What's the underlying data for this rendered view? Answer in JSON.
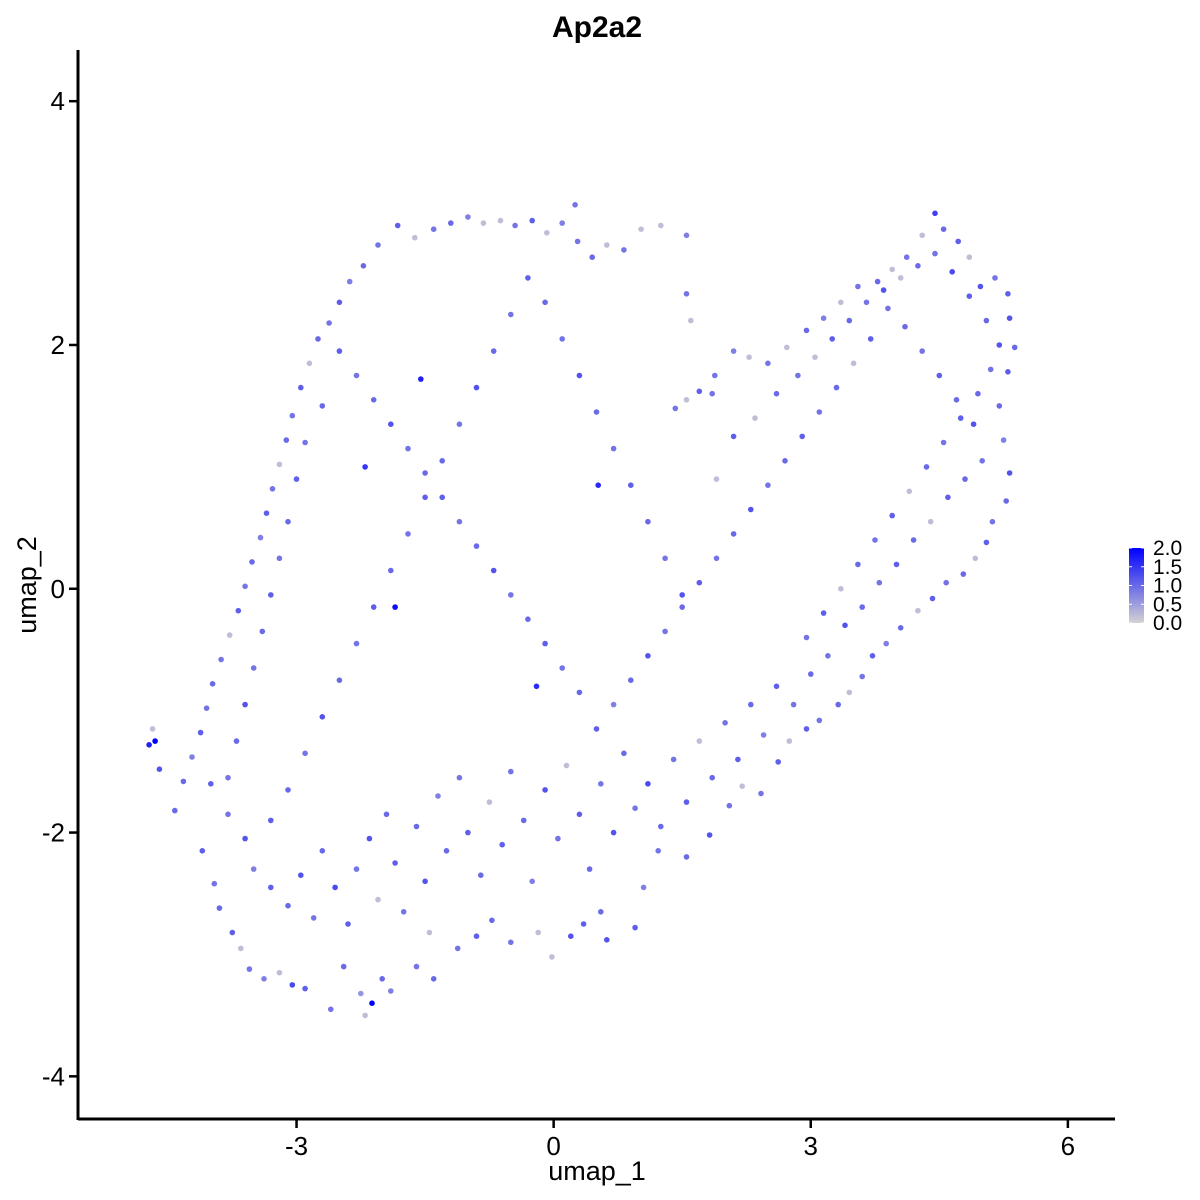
{
  "chart_data": {
    "type": "scatter",
    "title": "Ap2a2",
    "xlabel": "umap_1",
    "ylabel": "umap_2",
    "xlim": [
      -5.55,
      6.55
    ],
    "ylim": [
      -4.35,
      4.42
    ],
    "x_ticks": [
      -3,
      0,
      3,
      6
    ],
    "y_ticks": [
      -4,
      -2,
      0,
      2,
      4
    ],
    "x_tick_labels": [
      "-3",
      "0",
      "3",
      "6"
    ],
    "y_tick_labels": [
      "-4",
      "-2",
      "0",
      "2",
      "4"
    ],
    "color_scale": {
      "low": "#d3d3d3",
      "high": "#0000ff",
      "min": 0.0,
      "max": 2.0,
      "breaks": [
        "0.0",
        "0.5",
        "1.0",
        "1.5",
        "2.0"
      ]
    },
    "legend_position": "right",
    "grid": false,
    "points": [
      [
        -4.72,
        -1.28,
        1.7
      ],
      [
        -4.65,
        -1.25,
        2.0
      ],
      [
        -4.68,
        -1.15,
        0.2
      ],
      [
        -4.6,
        -1.48,
        1.2
      ],
      [
        -4.42,
        -1.82,
        1.0
      ],
      [
        -4.1,
        -2.15,
        1.1
      ],
      [
        -3.96,
        -2.42,
        0.9
      ],
      [
        -3.9,
        -2.62,
        1.0
      ],
      [
        -3.75,
        -2.82,
        1.1
      ],
      [
        -3.65,
        -2.95,
        0.2
      ],
      [
        -3.55,
        -3.12,
        0.9
      ],
      [
        -3.38,
        -3.2,
        0.8
      ],
      [
        -3.2,
        -3.15,
        0.2
      ],
      [
        -3.05,
        -3.25,
        1.3
      ],
      [
        -2.9,
        -3.28,
        1.1
      ],
      [
        -2.6,
        -3.45,
        0.9
      ],
      [
        -2.45,
        -3.1,
        1.0
      ],
      [
        -2.25,
        -3.32,
        0.6
      ],
      [
        -2.12,
        -3.4,
        2.0
      ],
      [
        -2.2,
        -3.5,
        0.2
      ],
      [
        -2.0,
        -3.2,
        1.0
      ],
      [
        -1.9,
        -3.3,
        0.8
      ],
      [
        -1.6,
        -3.1,
        0.9
      ],
      [
        -1.4,
        -3.2,
        1.0
      ],
      [
        -1.45,
        -2.82,
        0.2
      ],
      [
        -1.12,
        -2.95,
        0.9
      ],
      [
        -0.9,
        -2.85,
        1.1
      ],
      [
        -0.72,
        -2.72,
        1.0
      ],
      [
        -0.5,
        -2.9,
        0.9
      ],
      [
        -0.18,
        -2.82,
        0.2
      ],
      [
        -0.02,
        -3.02,
        0.2
      ],
      [
        0.2,
        -2.85,
        1.2
      ],
      [
        0.35,
        -2.75,
        1.1
      ],
      [
        0.55,
        -2.65,
        1.0
      ],
      [
        0.62,
        -2.88,
        1.2
      ],
      [
        0.95,
        -2.78,
        1.1
      ],
      [
        1.05,
        -2.45,
        0.8
      ],
      [
        1.22,
        -2.15,
        0.9
      ],
      [
        1.55,
        -2.2,
        1.0
      ],
      [
        1.82,
        -2.02,
        1.2
      ],
      [
        2.05,
        -1.78,
        0.9
      ],
      [
        2.2,
        -1.62,
        0.2
      ],
      [
        2.42,
        -1.68,
        0.9
      ],
      [
        2.62,
        -1.42,
        1.1
      ],
      [
        2.75,
        -1.25,
        0.2
      ],
      [
        2.95,
        -1.15,
        1.1
      ],
      [
        3.1,
        -1.08,
        0.9
      ],
      [
        3.32,
        -0.95,
        1.0
      ],
      [
        3.45,
        -0.85,
        0.2
      ],
      [
        3.6,
        -0.72,
        0.9
      ],
      [
        3.72,
        -0.55,
        1.1
      ],
      [
        3.88,
        -0.45,
        0.8
      ],
      [
        4.05,
        -0.32,
        1.0
      ],
      [
        4.25,
        -0.18,
        0.2
      ],
      [
        4.42,
        -0.08,
        1.1
      ],
      [
        4.58,
        0.05,
        0.9
      ],
      [
        4.78,
        0.12,
        1.0
      ],
      [
        4.92,
        0.25,
        0.2
      ],
      [
        5.05,
        0.38,
        1.1
      ],
      [
        5.12,
        0.55,
        0.9
      ],
      [
        5.28,
        0.72,
        1.0
      ],
      [
        5.32,
        0.95,
        1.2
      ],
      [
        5.25,
        1.22,
        0.8
      ],
      [
        5.2,
        1.5,
        1.0
      ],
      [
        5.3,
        1.78,
        1.1
      ],
      [
        5.38,
        1.98,
        1.0
      ],
      [
        5.32,
        2.22,
        1.2
      ],
      [
        5.3,
        2.42,
        1.1
      ],
      [
        5.15,
        2.55,
        0.9
      ],
      [
        4.98,
        2.48,
        1.2
      ],
      [
        4.85,
        2.72,
        0.2
      ],
      [
        4.72,
        2.85,
        1.1
      ],
      [
        4.55,
        2.95,
        1.0
      ],
      [
        4.45,
        3.08,
        1.4
      ],
      [
        4.3,
        2.9,
        0.2
      ],
      [
        4.12,
        2.72,
        0.9
      ],
      [
        3.95,
        2.62,
        0.2
      ],
      [
        3.78,
        2.52,
        1.0
      ],
      [
        3.55,
        2.48,
        0.9
      ],
      [
        3.35,
        2.35,
        0.2
      ],
      [
        3.15,
        2.22,
        0.8
      ],
      [
        2.95,
        2.12,
        1.0
      ],
      [
        2.72,
        1.98,
        0.2
      ],
      [
        2.5,
        1.85,
        0.9
      ],
      [
        2.28,
        1.9,
        0.2
      ],
      [
        2.1,
        1.95,
        0.8
      ],
      [
        1.88,
        1.75,
        0.9
      ],
      [
        1.7,
        1.62,
        1.1
      ],
      [
        1.55,
        1.55,
        0.2
      ],
      [
        1.42,
        1.48,
        0.9
      ],
      [
        1.55,
        2.42,
        0.9
      ],
      [
        1.6,
        2.2,
        0.2
      ],
      [
        1.55,
        2.9,
        0.8
      ],
      [
        1.25,
        2.98,
        0.2
      ],
      [
        1.02,
        2.95,
        0.2
      ],
      [
        0.82,
        2.78,
        0.9
      ],
      [
        0.62,
        2.82,
        0.2
      ],
      [
        0.45,
        2.72,
        1.0
      ],
      [
        0.28,
        2.85,
        0.9
      ],
      [
        0.1,
        3.0,
        0.8
      ],
      [
        0.25,
        3.15,
        0.9
      ],
      [
        -0.08,
        2.92,
        0.2
      ],
      [
        -0.25,
        3.02,
        1.1
      ],
      [
        -0.45,
        2.98,
        0.9
      ],
      [
        -0.62,
        3.02,
        0.2
      ],
      [
        -0.82,
        3.0,
        0.2
      ],
      [
        -1.0,
        3.05,
        0.8
      ],
      [
        -1.2,
        3.0,
        1.0
      ],
      [
        -1.4,
        2.95,
        0.9
      ],
      [
        -1.62,
        2.88,
        0.2
      ],
      [
        -1.82,
        2.98,
        1.1
      ],
      [
        -2.05,
        2.82,
        0.9
      ],
      [
        -2.22,
        2.65,
        1.0
      ],
      [
        -2.38,
        2.52,
        0.8
      ],
      [
        -2.5,
        2.35,
        1.1
      ],
      [
        -2.62,
        2.18,
        0.9
      ],
      [
        -2.75,
        2.05,
        1.0
      ],
      [
        -2.85,
        1.85,
        0.2
      ],
      [
        -2.95,
        1.65,
        1.1
      ],
      [
        -3.05,
        1.42,
        0.9
      ],
      [
        -3.12,
        1.22,
        1.0
      ],
      [
        -3.2,
        1.02,
        0.2
      ],
      [
        -3.28,
        0.82,
        0.9
      ],
      [
        -3.35,
        0.62,
        1.1
      ],
      [
        -3.42,
        0.42,
        0.8
      ],
      [
        -3.52,
        0.22,
        1.0
      ],
      [
        -3.6,
        0.02,
        0.9
      ],
      [
        -3.68,
        -0.18,
        1.1
      ],
      [
        -3.78,
        -0.38,
        0.2
      ],
      [
        -3.88,
        -0.58,
        0.9
      ],
      [
        -3.98,
        -0.78,
        1.0
      ],
      [
        -4.05,
        -0.98,
        0.9
      ],
      [
        -4.12,
        -1.18,
        1.1
      ],
      [
        -4.22,
        -1.38,
        0.8
      ],
      [
        -4.32,
        -1.58,
        1.0
      ],
      [
        -4.0,
        -1.6,
        1.1
      ],
      [
        -3.8,
        -1.85,
        0.9
      ],
      [
        -3.6,
        -2.05,
        1.2
      ],
      [
        -3.5,
        -2.3,
        0.8
      ],
      [
        -3.3,
        -2.45,
        1.1
      ],
      [
        -3.1,
        -2.6,
        1.0
      ],
      [
        -2.95,
        -2.35,
        1.2
      ],
      [
        -2.8,
        -2.7,
        0.9
      ],
      [
        -2.7,
        -2.15,
        1.0
      ],
      [
        -2.55,
        -2.45,
        1.3
      ],
      [
        -2.4,
        -2.75,
        1.1
      ],
      [
        -2.3,
        -2.3,
        0.9
      ],
      [
        -2.15,
        -2.05,
        1.2
      ],
      [
        -2.05,
        -2.55,
        0.2
      ],
      [
        -1.95,
        -1.85,
        1.0
      ],
      [
        -1.85,
        -2.25,
        1.1
      ],
      [
        -1.75,
        -2.65,
        0.9
      ],
      [
        -1.6,
        -1.95,
        1.0
      ],
      [
        -1.5,
        -2.4,
        1.2
      ],
      [
        -1.35,
        -1.7,
        0.8
      ],
      [
        -1.25,
        -2.15,
        1.0
      ],
      [
        -1.1,
        -1.55,
        0.9
      ],
      [
        -1.0,
        -2.0,
        1.1
      ],
      [
        -0.85,
        -2.35,
        1.0
      ],
      [
        -0.75,
        -1.75,
        0.2
      ],
      [
        -0.6,
        -2.1,
        1.1
      ],
      [
        -0.5,
        -1.5,
        0.9
      ],
      [
        -0.35,
        -1.9,
        1.0
      ],
      [
        -0.25,
        -2.4,
        0.8
      ],
      [
        -0.1,
        -1.65,
        1.2
      ],
      [
        0.05,
        -2.05,
        0.9
      ],
      [
        0.15,
        -1.45,
        0.2
      ],
      [
        0.3,
        -1.85,
        1.1
      ],
      [
        0.42,
        -2.3,
        1.0
      ],
      [
        0.55,
        -1.6,
        0.9
      ],
      [
        0.7,
        -2.0,
        1.2
      ],
      [
        0.82,
        -1.35,
        1.0
      ],
      [
        0.95,
        -1.8,
        0.9
      ],
      [
        1.1,
        -1.6,
        1.3
      ],
      [
        1.25,
        -1.95,
        1.0
      ],
      [
        1.4,
        -1.4,
        0.9
      ],
      [
        1.55,
        -1.75,
        1.1
      ],
      [
        1.7,
        -1.25,
        0.2
      ],
      [
        1.85,
        -1.55,
        1.0
      ],
      [
        2.0,
        -1.1,
        0.9
      ],
      [
        2.15,
        -1.4,
        1.1
      ],
      [
        2.3,
        -0.95,
        1.0
      ],
      [
        2.45,
        -1.2,
        0.8
      ],
      [
        2.6,
        -0.8,
        1.1
      ],
      [
        2.8,
        -0.95,
        0.9
      ],
      [
        3.0,
        -0.7,
        1.0
      ],
      [
        3.2,
        -0.55,
        0.9
      ],
      [
        3.4,
        -0.3,
        1.2
      ],
      [
        3.6,
        -0.15,
        1.0
      ],
      [
        3.8,
        0.05,
        0.9
      ],
      [
        4.0,
        0.2,
        1.1
      ],
      [
        4.2,
        0.4,
        1.0
      ],
      [
        4.4,
        0.55,
        0.2
      ],
      [
        4.6,
        0.75,
        1.1
      ],
      [
        4.8,
        0.9,
        1.0
      ],
      [
        5.0,
        1.05,
        0.9
      ],
      [
        4.9,
        1.35,
        1.2
      ],
      [
        4.7,
        1.55,
        1.0
      ],
      [
        4.5,
        1.75,
        1.1
      ],
      [
        4.3,
        1.95,
        0.9
      ],
      [
        4.1,
        2.15,
        1.0
      ],
      [
        3.9,
        2.3,
        0.9
      ],
      [
        3.7,
        2.05,
        1.1
      ],
      [
        3.5,
        1.85,
        0.2
      ],
      [
        3.3,
        1.65,
        1.0
      ],
      [
        3.1,
        1.45,
        0.9
      ],
      [
        2.9,
        1.25,
        1.1
      ],
      [
        2.7,
        1.05,
        1.0
      ],
      [
        2.5,
        0.85,
        0.9
      ],
      [
        2.3,
        0.65,
        1.2
      ],
      [
        2.1,
        0.45,
        1.0
      ],
      [
        1.9,
        0.25,
        0.9
      ],
      [
        1.7,
        0.05,
        1.1
      ],
      [
        1.5,
        -0.15,
        1.0
      ],
      [
        1.3,
        -0.35,
        0.9
      ],
      [
        1.1,
        -0.55,
        1.2
      ],
      [
        0.9,
        -0.75,
        1.0
      ],
      [
        0.7,
        -0.95,
        0.8
      ],
      [
        0.5,
        -1.15,
        1.1
      ],
      [
        0.3,
        -0.85,
        1.0
      ],
      [
        0.1,
        -0.65,
        0.9
      ],
      [
        -0.1,
        -0.45,
        1.1
      ],
      [
        -0.3,
        -0.25,
        1.0
      ],
      [
        -0.5,
        -0.05,
        0.9
      ],
      [
        -0.7,
        0.15,
        1.2
      ],
      [
        -0.9,
        0.35,
        1.0
      ],
      [
        -1.1,
        0.55,
        0.9
      ],
      [
        -1.3,
        0.75,
        1.1
      ],
      [
        -1.5,
        0.95,
        1.0
      ],
      [
        -1.7,
        1.15,
        0.9
      ],
      [
        -1.9,
        1.35,
        1.2
      ],
      [
        -2.1,
        1.55,
        1.0
      ],
      [
        -2.3,
        1.75,
        0.9
      ],
      [
        -2.5,
        1.95,
        1.1
      ],
      [
        -2.7,
        1.5,
        1.0
      ],
      [
        -2.9,
        1.2,
        0.9
      ],
      [
        -3.0,
        0.9,
        1.1
      ],
      [
        -3.1,
        0.55,
        1.0
      ],
      [
        -3.2,
        0.25,
        0.9
      ],
      [
        -3.3,
        -0.05,
        1.1
      ],
      [
        -3.4,
        -0.35,
        1.0
      ],
      [
        -3.5,
        -0.65,
        0.9
      ],
      [
        -3.6,
        -0.95,
        1.2
      ],
      [
        -3.7,
        -1.25,
        1.0
      ],
      [
        -3.8,
        -1.55,
        0.9
      ],
      [
        -3.3,
        -1.9,
        1.1
      ],
      [
        -3.1,
        -1.65,
        1.0
      ],
      [
        -2.9,
        -1.35,
        0.9
      ],
      [
        -2.7,
        -1.05,
        1.2
      ],
      [
        -2.5,
        -0.75,
        1.0
      ],
      [
        -2.3,
        -0.45,
        0.9
      ],
      [
        -2.1,
        -0.15,
        1.1
      ],
      [
        -1.9,
        0.15,
        1.0
      ],
      [
        -1.7,
        0.45,
        0.9
      ],
      [
        -1.5,
        0.75,
        1.1
      ],
      [
        -1.3,
        1.05,
        1.0
      ],
      [
        -1.1,
        1.35,
        0.9
      ],
      [
        -0.9,
        1.65,
        1.2
      ],
      [
        -0.7,
        1.95,
        1.0
      ],
      [
        -0.5,
        2.25,
        0.9
      ],
      [
        -0.3,
        2.55,
        1.1
      ],
      [
        -0.1,
        2.35,
        1.0
      ],
      [
        0.1,
        2.05,
        0.9
      ],
      [
        0.3,
        1.75,
        1.2
      ],
      [
        0.5,
        1.45,
        1.0
      ],
      [
        0.7,
        1.15,
        0.9
      ],
      [
        0.9,
        0.85,
        1.1
      ],
      [
        1.1,
        0.55,
        1.0
      ],
      [
        1.3,
        0.25,
        0.9
      ],
      [
        1.5,
        -0.05,
        1.2
      ],
      [
        -1.85,
        -0.15,
        1.9
      ],
      [
        0.52,
        0.85,
        1.6
      ],
      [
        -1.55,
        1.72,
        1.7
      ],
      [
        -2.2,
        1.0,
        1.5
      ],
      [
        -0.2,
        -0.8,
        1.6
      ],
      [
        1.9,
        0.9,
        0.2
      ],
      [
        1.85,
        1.6,
        0.9
      ],
      [
        2.1,
        1.25,
        1.1
      ],
      [
        2.35,
        1.4,
        0.2
      ],
      [
        2.6,
        1.6,
        1.0
      ],
      [
        2.85,
        1.75,
        0.9
      ],
      [
        3.05,
        1.9,
        0.2
      ],
      [
        3.25,
        2.05,
        1.1
      ],
      [
        3.45,
        2.2,
        1.0
      ],
      [
        3.65,
        2.35,
        0.9
      ],
      [
        3.85,
        2.45,
        1.2
      ],
      [
        4.05,
        2.55,
        0.2
      ],
      [
        4.25,
        2.65,
        1.0
      ],
      [
        4.45,
        2.75,
        0.9
      ],
      [
        4.65,
        2.6,
        1.3
      ],
      [
        4.85,
        2.4,
        1.1
      ],
      [
        5.05,
        2.2,
        1.0
      ],
      [
        5.2,
        2.0,
        1.2
      ],
      [
        5.1,
        1.8,
        0.9
      ],
      [
        4.95,
        1.6,
        1.0
      ],
      [
        4.75,
        1.4,
        1.1
      ],
      [
        4.55,
        1.2,
        0.9
      ],
      [
        4.35,
        1.0,
        1.0
      ],
      [
        4.15,
        0.8,
        0.2
      ],
      [
        3.95,
        0.6,
        1.1
      ],
      [
        3.75,
        0.4,
        0.9
      ],
      [
        3.55,
        0.2,
        1.0
      ],
      [
        3.35,
        0.0,
        0.2
      ],
      [
        3.15,
        -0.2,
        1.1
      ],
      [
        2.95,
        -0.4,
        0.9
      ]
    ]
  }
}
